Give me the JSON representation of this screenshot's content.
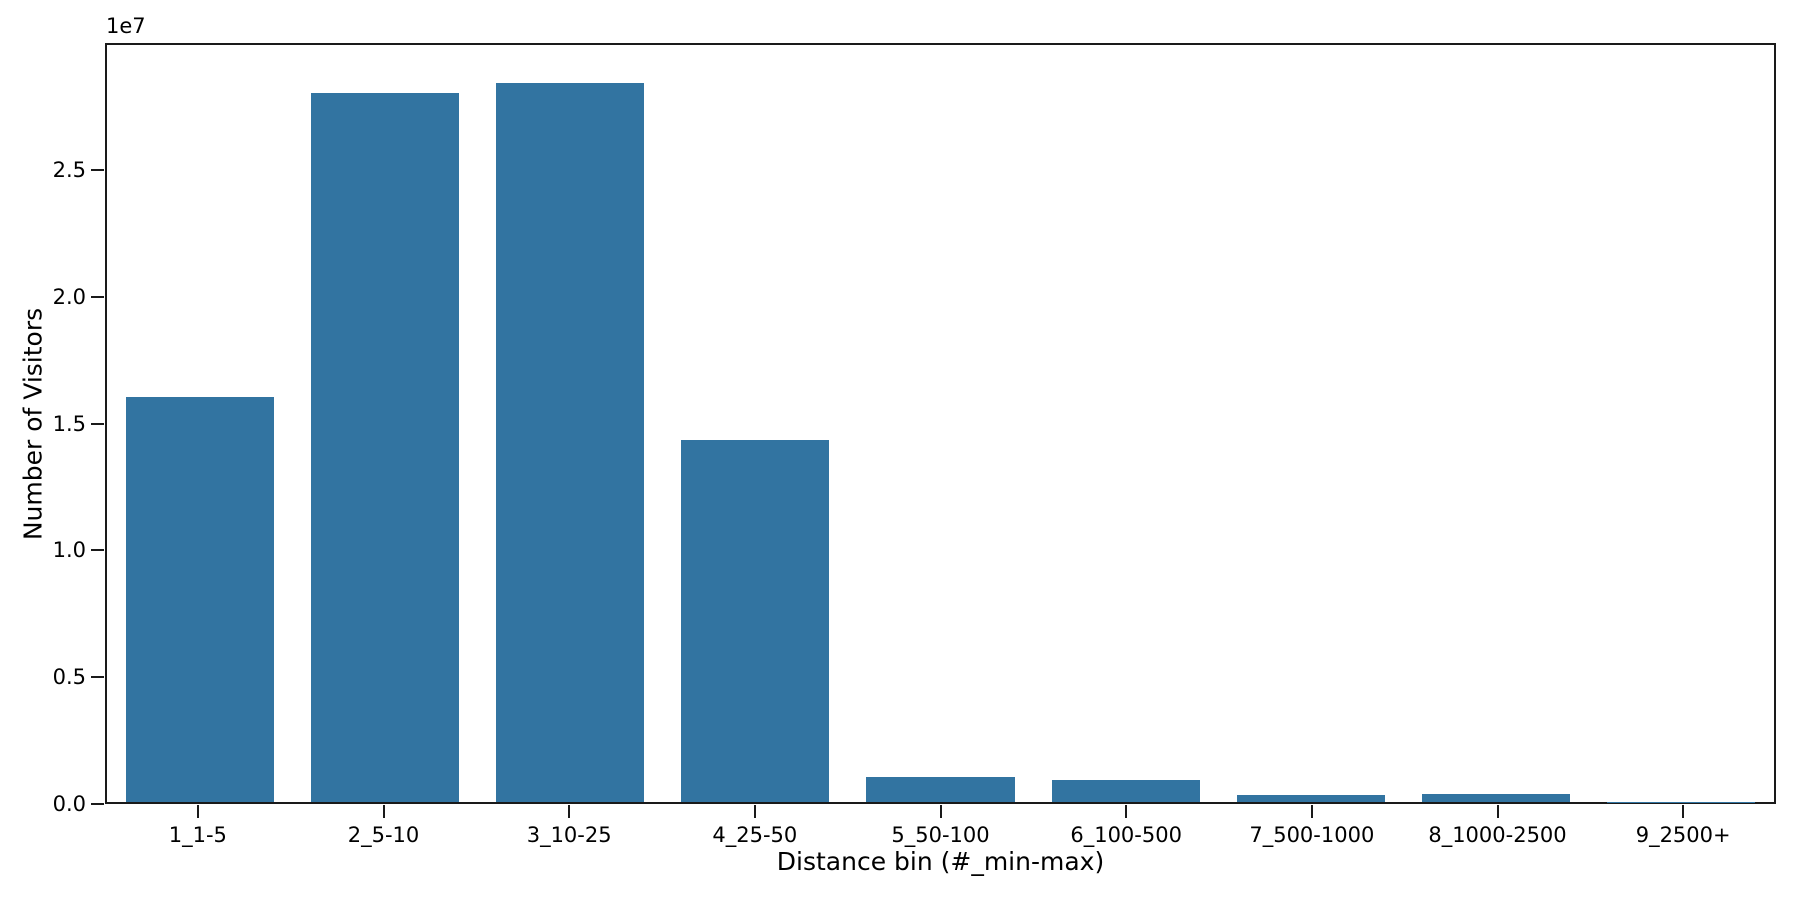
{
  "chart_data": {
    "type": "bar",
    "title": "",
    "xlabel": "Distance bin (#_min-max)",
    "ylabel": "Number of Visitors",
    "y_axis_offset_label": "1e7",
    "categories": [
      "1_1-5",
      "2_5-10",
      "3_10-25",
      "4_25-50",
      "5_50-100",
      "6_100-500",
      "7_500-1000",
      "8_1000-2500",
      "9_2500+"
    ],
    "values": [
      16050000,
      28100000,
      28500000,
      14350000,
      1010000,
      880000,
      290000,
      335000,
      15000
    ],
    "ylim": [
      0,
      30000000
    ],
    "yticks": [
      0,
      5000000,
      10000000,
      15000000,
      20000000,
      25000000
    ],
    "ytick_labels": [
      "0.0",
      "0.5",
      "1.0",
      "1.5",
      "2.0",
      "2.5"
    ],
    "bar_color": "#3274a1",
    "axis_color": "#1a1a1a",
    "grid": false,
    "legend_position": "none"
  }
}
